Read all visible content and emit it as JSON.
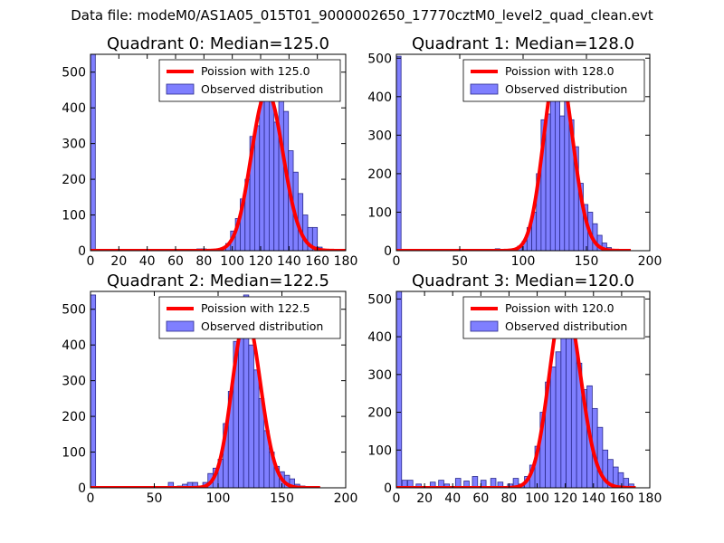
{
  "figure": {
    "title": "Data file: modeM0/AS1A05_015T01_9000002650_17770cztM0_level2_quad_clean.evt"
  },
  "colors": {
    "histogram_fill": "#7f7fff",
    "histogram_edge": "#2a2a8c",
    "poisson_line": "#ff0000",
    "axes": "#000000"
  },
  "chart_data": [
    {
      "type": "bar",
      "title": "Quadrant 0: Median=125.0",
      "xlabel": "",
      "ylabel": "",
      "xlim": [
        0,
        180
      ],
      "ylim": [
        0,
        550
      ],
      "xticks": [
        0,
        20,
        40,
        60,
        80,
        100,
        120,
        140,
        160,
        180
      ],
      "yticks": [
        0,
        100,
        200,
        300,
        400,
        500
      ],
      "legend_position": "top-right",
      "bin_width": 3.4,
      "bins": [
        {
          "x": 0,
          "v": 550
        },
        {
          "x": 75,
          "v": 5
        },
        {
          "x": 78.4,
          "v": 5
        },
        {
          "x": 81.8,
          "v": 2
        },
        {
          "x": 85.2,
          "v": 2
        },
        {
          "x": 88.6,
          "v": 4
        },
        {
          "x": 92,
          "v": 8
        },
        {
          "x": 95.4,
          "v": 20
        },
        {
          "x": 98.8,
          "v": 55
        },
        {
          "x": 102.2,
          "v": 90
        },
        {
          "x": 105.6,
          "v": 145
        },
        {
          "x": 109,
          "v": 200
        },
        {
          "x": 112.4,
          "v": 320
        },
        {
          "x": 115.8,
          "v": 350
        },
        {
          "x": 119.2,
          "v": 420
        },
        {
          "x": 122.6,
          "v": 500
        },
        {
          "x": 126,
          "v": 440
        },
        {
          "x": 129.4,
          "v": 360
        },
        {
          "x": 132.8,
          "v": 450
        },
        {
          "x": 136.2,
          "v": 390
        },
        {
          "x": 139.6,
          "v": 280
        },
        {
          "x": 143,
          "v": 220
        },
        {
          "x": 146.4,
          "v": 160
        },
        {
          "x": 149.8,
          "v": 100
        },
        {
          "x": 153.2,
          "v": 65
        },
        {
          "x": 156.6,
          "v": 65
        },
        {
          "x": 160,
          "v": 10
        },
        {
          "x": 163.4,
          "v": 3
        },
        {
          "x": 166.8,
          "v": 2
        }
      ],
      "series": [
        {
          "name": "Poission with 125.0",
          "kind": "poisson",
          "mean": 125.0,
          "scale": 12500,
          "x_range": [
            0,
            180
          ]
        },
        {
          "name": "Observed distribution",
          "kind": "histogram"
        }
      ]
    },
    {
      "type": "bar",
      "title": "Quadrant 1: Median=128.0",
      "xlabel": "",
      "ylabel": "",
      "xlim": [
        0,
        200
      ],
      "ylim": [
        0,
        510
      ],
      "xticks": [
        0,
        50,
        100,
        150,
        200
      ],
      "yticks": [
        0,
        100,
        200,
        300,
        400,
        500
      ],
      "legend_position": "top-right",
      "bin_width": 3.7,
      "bins": [
        {
          "x": 0,
          "v": 505
        },
        {
          "x": 55,
          "v": 2
        },
        {
          "x": 78,
          "v": 5
        },
        {
          "x": 86,
          "v": 3
        },
        {
          "x": 92,
          "v": 5
        },
        {
          "x": 95.7,
          "v": 12
        },
        {
          "x": 99.4,
          "v": 25
        },
        {
          "x": 103.1,
          "v": 60
        },
        {
          "x": 106.8,
          "v": 100
        },
        {
          "x": 110.5,
          "v": 200
        },
        {
          "x": 114.2,
          "v": 340
        },
        {
          "x": 117.9,
          "v": 355
        },
        {
          "x": 121.6,
          "v": 400
        },
        {
          "x": 125.3,
          "v": 470
        },
        {
          "x": 129,
          "v": 350
        },
        {
          "x": 132.7,
          "v": 470
        },
        {
          "x": 136.4,
          "v": 340
        },
        {
          "x": 140.1,
          "v": 270
        },
        {
          "x": 143.8,
          "v": 175
        },
        {
          "x": 147.5,
          "v": 120
        },
        {
          "x": 151.2,
          "v": 100
        },
        {
          "x": 154.9,
          "v": 70
        },
        {
          "x": 158.6,
          "v": 40
        },
        {
          "x": 162.3,
          "v": 20
        },
        {
          "x": 166,
          "v": 8
        },
        {
          "x": 169.7,
          "v": 3
        },
        {
          "x": 176,
          "v": 2
        }
      ],
      "series": [
        {
          "name": "Poission with 128.0",
          "kind": "poisson",
          "mean": 128.0,
          "scale": 13800,
          "x_range": [
            0,
            185
          ]
        },
        {
          "name": "Observed distribution",
          "kind": "histogram"
        }
      ]
    },
    {
      "type": "bar",
      "title": "Quadrant 2: Median=122.5",
      "xlabel": "",
      "ylabel": "",
      "xlim": [
        0,
        200
      ],
      "ylim": [
        0,
        550
      ],
      "xticks": [
        0,
        50,
        100,
        150,
        200
      ],
      "yticks": [
        0,
        100,
        200,
        300,
        400,
        500
      ],
      "legend_position": "top-right",
      "bin_width": 4.0,
      "bins": [
        {
          "x": 0,
          "v": 540
        },
        {
          "x": 61,
          "v": 15
        },
        {
          "x": 68,
          "v": 5
        },
        {
          "x": 72,
          "v": 10
        },
        {
          "x": 76,
          "v": 15
        },
        {
          "x": 80,
          "v": 15
        },
        {
          "x": 84,
          "v": 5
        },
        {
          "x": 88,
          "v": 15
        },
        {
          "x": 92,
          "v": 40
        },
        {
          "x": 96,
          "v": 55
        },
        {
          "x": 100,
          "v": 80
        },
        {
          "x": 104,
          "v": 180
        },
        {
          "x": 108,
          "v": 270
        },
        {
          "x": 112,
          "v": 410
        },
        {
          "x": 116,
          "v": 420
        },
        {
          "x": 120,
          "v": 540
        },
        {
          "x": 124,
          "v": 400
        },
        {
          "x": 128,
          "v": 330
        },
        {
          "x": 132,
          "v": 250
        },
        {
          "x": 136,
          "v": 160
        },
        {
          "x": 140,
          "v": 100
        },
        {
          "x": 144,
          "v": 60
        },
        {
          "x": 148,
          "v": 45
        },
        {
          "x": 152,
          "v": 35
        },
        {
          "x": 156,
          "v": 25
        },
        {
          "x": 160,
          "v": 10
        },
        {
          "x": 164,
          "v": 5
        },
        {
          "x": 172,
          "v": 2
        }
      ],
      "series": [
        {
          "name": "Poission with 122.5",
          "kind": "poisson",
          "mean": 122.5,
          "scale": 13300,
          "x_range": [
            0,
            180
          ]
        },
        {
          "name": "Observed distribution",
          "kind": "histogram"
        }
      ]
    },
    {
      "type": "bar",
      "title": "Quadrant 3: Median=120.0",
      "xlabel": "",
      "ylabel": "",
      "xlim": [
        0,
        180
      ],
      "ylim": [
        0,
        520
      ],
      "xticks": [
        0,
        20,
        40,
        60,
        80,
        100,
        120,
        140,
        160,
        180
      ],
      "yticks": [
        0,
        100,
        200,
        300,
        400,
        500
      ],
      "legend_position": "top-right",
      "bin_width": 3.7,
      "bins": [
        {
          "x": 0,
          "v": 520
        },
        {
          "x": 4,
          "v": 20
        },
        {
          "x": 8,
          "v": 20
        },
        {
          "x": 14,
          "v": 10
        },
        {
          "x": 24,
          "v": 15
        },
        {
          "x": 30,
          "v": 20
        },
        {
          "x": 34,
          "v": 10
        },
        {
          "x": 42,
          "v": 25
        },
        {
          "x": 48,
          "v": 18
        },
        {
          "x": 54,
          "v": 30
        },
        {
          "x": 60,
          "v": 20
        },
        {
          "x": 67,
          "v": 25
        },
        {
          "x": 72,
          "v": 15
        },
        {
          "x": 79,
          "v": 10
        },
        {
          "x": 83,
          "v": 25
        },
        {
          "x": 87,
          "v": 10
        },
        {
          "x": 91,
          "v": 30
        },
        {
          "x": 94.7,
          "v": 60
        },
        {
          "x": 98.4,
          "v": 110
        },
        {
          "x": 102.1,
          "v": 200
        },
        {
          "x": 105.8,
          "v": 280
        },
        {
          "x": 109.5,
          "v": 320
        },
        {
          "x": 113.2,
          "v": 360
        },
        {
          "x": 116.9,
          "v": 420
        },
        {
          "x": 120.6,
          "v": 480
        },
        {
          "x": 124.3,
          "v": 400
        },
        {
          "x": 128,
          "v": 330
        },
        {
          "x": 131.7,
          "v": 260
        },
        {
          "x": 135.4,
          "v": 270
        },
        {
          "x": 139.1,
          "v": 210
        },
        {
          "x": 142.8,
          "v": 160
        },
        {
          "x": 146.5,
          "v": 100
        },
        {
          "x": 150.2,
          "v": 75
        },
        {
          "x": 153.9,
          "v": 55
        },
        {
          "x": 157.6,
          "v": 40
        },
        {
          "x": 161.3,
          "v": 25
        },
        {
          "x": 165,
          "v": 10
        }
      ],
      "series": [
        {
          "name": "Poission with 120.0",
          "kind": "poisson",
          "mean": 120.0,
          "scale": 13700,
          "x_range": [
            0,
            170
          ]
        },
        {
          "name": "Observed distribution",
          "kind": "histogram"
        }
      ]
    }
  ]
}
